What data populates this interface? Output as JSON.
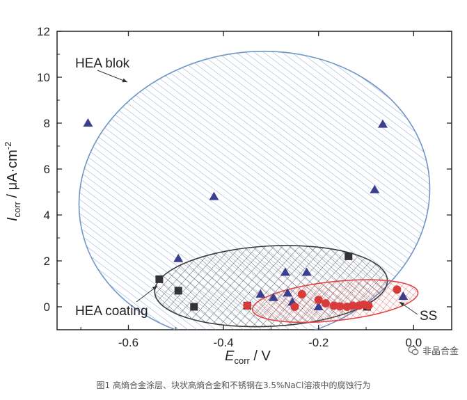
{
  "chart_data": {
    "type": "scatter",
    "x": {
      "label_main": "E",
      "label_sub": "corr",
      "label_rest": " / V",
      "lim": [
        -0.75,
        0.08
      ],
      "ticks": [
        -0.6,
        -0.4,
        -0.2,
        0.0
      ],
      "tick_labels": [
        "-0.6",
        "-0.4",
        "-0.2",
        "0.0"
      ]
    },
    "y": {
      "label_main": "I",
      "label_sub": "corr",
      "label_rest": " / μA·cm",
      "label_sup": "-2",
      "lim": [
        -1,
        12
      ],
      "ticks": [
        0,
        2,
        4,
        6,
        8,
        10,
        12
      ],
      "tick_labels": [
        "0",
        "2",
        "4",
        "6",
        "8",
        "10",
        "12"
      ]
    },
    "series": [
      {
        "name": "HEA blok",
        "marker": "triangle",
        "color": "#3a3f8f",
        "points": [
          [
            -0.685,
            8.0
          ],
          [
            -0.42,
            4.8
          ],
          [
            -0.065,
            7.95
          ],
          [
            -0.082,
            5.1
          ],
          [
            -0.495,
            2.1
          ],
          [
            -0.27,
            1.5
          ],
          [
            -0.225,
            1.5
          ],
          [
            -0.322,
            0.55
          ],
          [
            -0.295,
            0.4
          ],
          [
            -0.265,
            0.6
          ],
          [
            -0.255,
            0.2
          ],
          [
            -0.2,
            0.0
          ],
          [
            -0.022,
            0.45
          ]
        ]
      },
      {
        "name": "HEA coating",
        "marker": "square",
        "color": "#333333",
        "points": [
          [
            -0.535,
            1.2
          ],
          [
            -0.495,
            0.7
          ],
          [
            -0.462,
            0.0
          ],
          [
            -0.35,
            0.05
          ],
          [
            -0.137,
            2.2
          ],
          [
            -0.098,
            0.0
          ]
        ]
      },
      {
        "name": "SS",
        "marker": "circle",
        "color": "#d93a3a",
        "points": [
          [
            -0.35,
            0.05
          ],
          [
            -0.25,
            0.0
          ],
          [
            -0.235,
            0.55
          ],
          [
            -0.2,
            0.3
          ],
          [
            -0.185,
            0.15
          ],
          [
            -0.168,
            0.05
          ],
          [
            -0.155,
            0.02
          ],
          [
            -0.14,
            0.0
          ],
          [
            -0.128,
            0.05
          ],
          [
            -0.115,
            0.05
          ],
          [
            -0.105,
            0.1
          ],
          [
            -0.095,
            0.05
          ],
          [
            -0.035,
            0.75
          ]
        ]
      }
    ],
    "regions": [
      {
        "name": "HEA blok",
        "cx": -0.335,
        "cy": 4.8,
        "rx": 0.37,
        "ry": 6.3,
        "rotation_deg": -8,
        "stroke": "#6f94c6",
        "hatch": "single"
      },
      {
        "name": "HEA coating",
        "cx": -0.3,
        "cy": 0.9,
        "rx": 0.245,
        "ry": 1.75,
        "rotation_deg": -3,
        "stroke": "#3a3a3a",
        "hatch": "cross"
      },
      {
        "name": "SS",
        "cx": -0.165,
        "cy": 0.25,
        "rx": 0.175,
        "ry": 0.85,
        "rotation_deg": -6,
        "stroke": "#e04545",
        "hatch": "cross"
      }
    ],
    "annotations": [
      {
        "text": "HEA blok",
        "target": "HEA blok"
      },
      {
        "text": "HEA coating",
        "target": "HEA coating"
      },
      {
        "text": "SS",
        "target": "SS"
      }
    ]
  },
  "watermark": {
    "text": "非晶合金"
  },
  "caption": "图1  高熵合金涂层、块状高熵合金和不锈钢在3.5%NaCl溶液中的腐蚀行为"
}
